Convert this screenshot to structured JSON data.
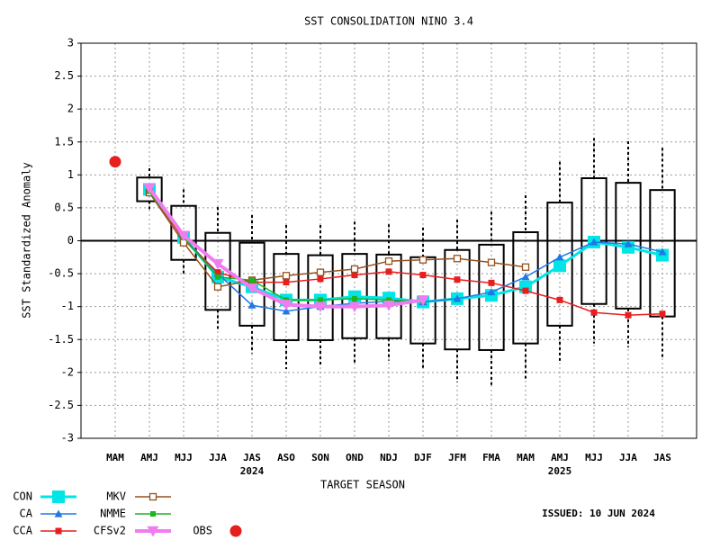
{
  "chart_data": {
    "type": "box_line",
    "title": "SST CONSOLIDATION NINO 3.4",
    "y_label": "SST Standardized Anomaly",
    "x_label": "TARGET SEASON",
    "issued": "ISSUED: 10 JUN 2024",
    "categories": [
      "MAM",
      "AMJ",
      "MJJ",
      "JJA",
      "JAS",
      "ASO",
      "SON",
      "OND",
      "NDJ",
      "DJF",
      "JFM",
      "FMA",
      "MAM",
      "AMJ",
      "MJJ",
      "JJA",
      "JAS"
    ],
    "year_labels": [
      null,
      null,
      null,
      null,
      "2024",
      null,
      null,
      null,
      null,
      null,
      null,
      null,
      null,
      "2025",
      null,
      null,
      null
    ],
    "ylim": [
      -3,
      3
    ],
    "yticks": [
      -3,
      -2.5,
      -2,
      -1.5,
      -1,
      -0.5,
      0,
      0.5,
      1,
      1.5,
      2,
      2.5,
      3
    ],
    "grid": true,
    "boxes": {
      "whisker_low": [
        null,
        0.48,
        -0.5,
        -1.37,
        -1.71,
        -1.95,
        -1.88,
        -1.85,
        -1.82,
        -1.95,
        -2.15,
        -2.19,
        -2.12,
        -1.86,
        -1.56,
        -1.62,
        -1.77
      ],
      "q1": [
        null,
        0.6,
        -0.29,
        -1.05,
        -1.29,
        -1.51,
        -1.51,
        -1.48,
        -1.48,
        -1.56,
        -1.65,
        -1.66,
        -1.56,
        -1.29,
        -0.96,
        -1.03,
        -1.15
      ],
      "q3": [
        null,
        0.96,
        0.53,
        0.12,
        -0.03,
        -0.2,
        -0.22,
        -0.2,
        -0.21,
        -0.25,
        -0.14,
        -0.06,
        0.13,
        0.58,
        0.95,
        0.88,
        0.77
      ],
      "whisker_high": [
        null,
        1.1,
        0.78,
        0.51,
        0.39,
        0.24,
        0.24,
        0.29,
        0.25,
        0.2,
        0.32,
        0.44,
        0.69,
        1.2,
        1.56,
        1.51,
        1.41
      ]
    },
    "series": [
      {
        "name": "CON",
        "color": "#00e5e5",
        "marker": "big_square",
        "line_width": 3,
        "values": [
          null,
          0.78,
          0.05,
          -0.55,
          -0.7,
          -0.9,
          -0.9,
          -0.85,
          -0.87,
          -0.93,
          -0.88,
          -0.83,
          -0.7,
          -0.38,
          -0.02,
          -0.1,
          -0.22
        ]
      },
      {
        "name": "CA",
        "color": "#1e78e6",
        "marker": "triangle",
        "line_width": 1.5,
        "values": [
          null,
          0.76,
          0.05,
          -0.5,
          -0.98,
          -1.07,
          -1.0,
          -0.95,
          -0.92,
          -0.93,
          -0.88,
          -0.78,
          -0.55,
          -0.25,
          -0.02,
          -0.05,
          -0.17
        ]
      },
      {
        "name": "CCA",
        "color": "#e61e1e",
        "marker": "square",
        "line_width": 1.5,
        "values": [
          null,
          0.75,
          0.02,
          -0.48,
          -0.63,
          -0.63,
          -0.58,
          -0.52,
          -0.47,
          -0.52,
          -0.59,
          -0.64,
          -0.76,
          -0.9,
          -1.09,
          -1.13,
          -1.11
        ]
      },
      {
        "name": "MKV",
        "color": "#96501e",
        "marker": "open_square",
        "line_width": 1.5,
        "values": [
          null,
          0.73,
          -0.03,
          -0.7,
          -0.6,
          -0.53,
          -0.48,
          -0.43,
          -0.31,
          -0.29,
          -0.27,
          -0.33,
          -0.4,
          null,
          null,
          null,
          null
        ]
      },
      {
        "name": "NMME",
        "color": "#1eb41e",
        "marker": "small_square",
        "line_width": 1.5,
        "values": [
          null,
          0.75,
          0.05,
          -0.55,
          -0.6,
          -0.9,
          -0.9,
          -0.88,
          -0.9,
          -0.92,
          null,
          null,
          null,
          null,
          null,
          null,
          null
        ]
      },
      {
        "name": "CFSv2",
        "color": "#f07cf0",
        "marker": "tri_down",
        "line_width": 4,
        "values": [
          null,
          0.8,
          0.08,
          -0.35,
          -0.72,
          -0.97,
          -1.0,
          -1.0,
          -0.98,
          -0.9,
          null,
          null,
          null,
          null,
          null,
          null,
          null
        ]
      },
      {
        "name": "OBS",
        "color": "#e61e1e",
        "marker": "circle",
        "line_width": 0,
        "values": [
          1.2,
          null,
          null,
          null,
          null,
          null,
          null,
          null,
          null,
          null,
          null,
          null,
          null,
          null,
          null,
          null,
          null
        ]
      }
    ]
  }
}
